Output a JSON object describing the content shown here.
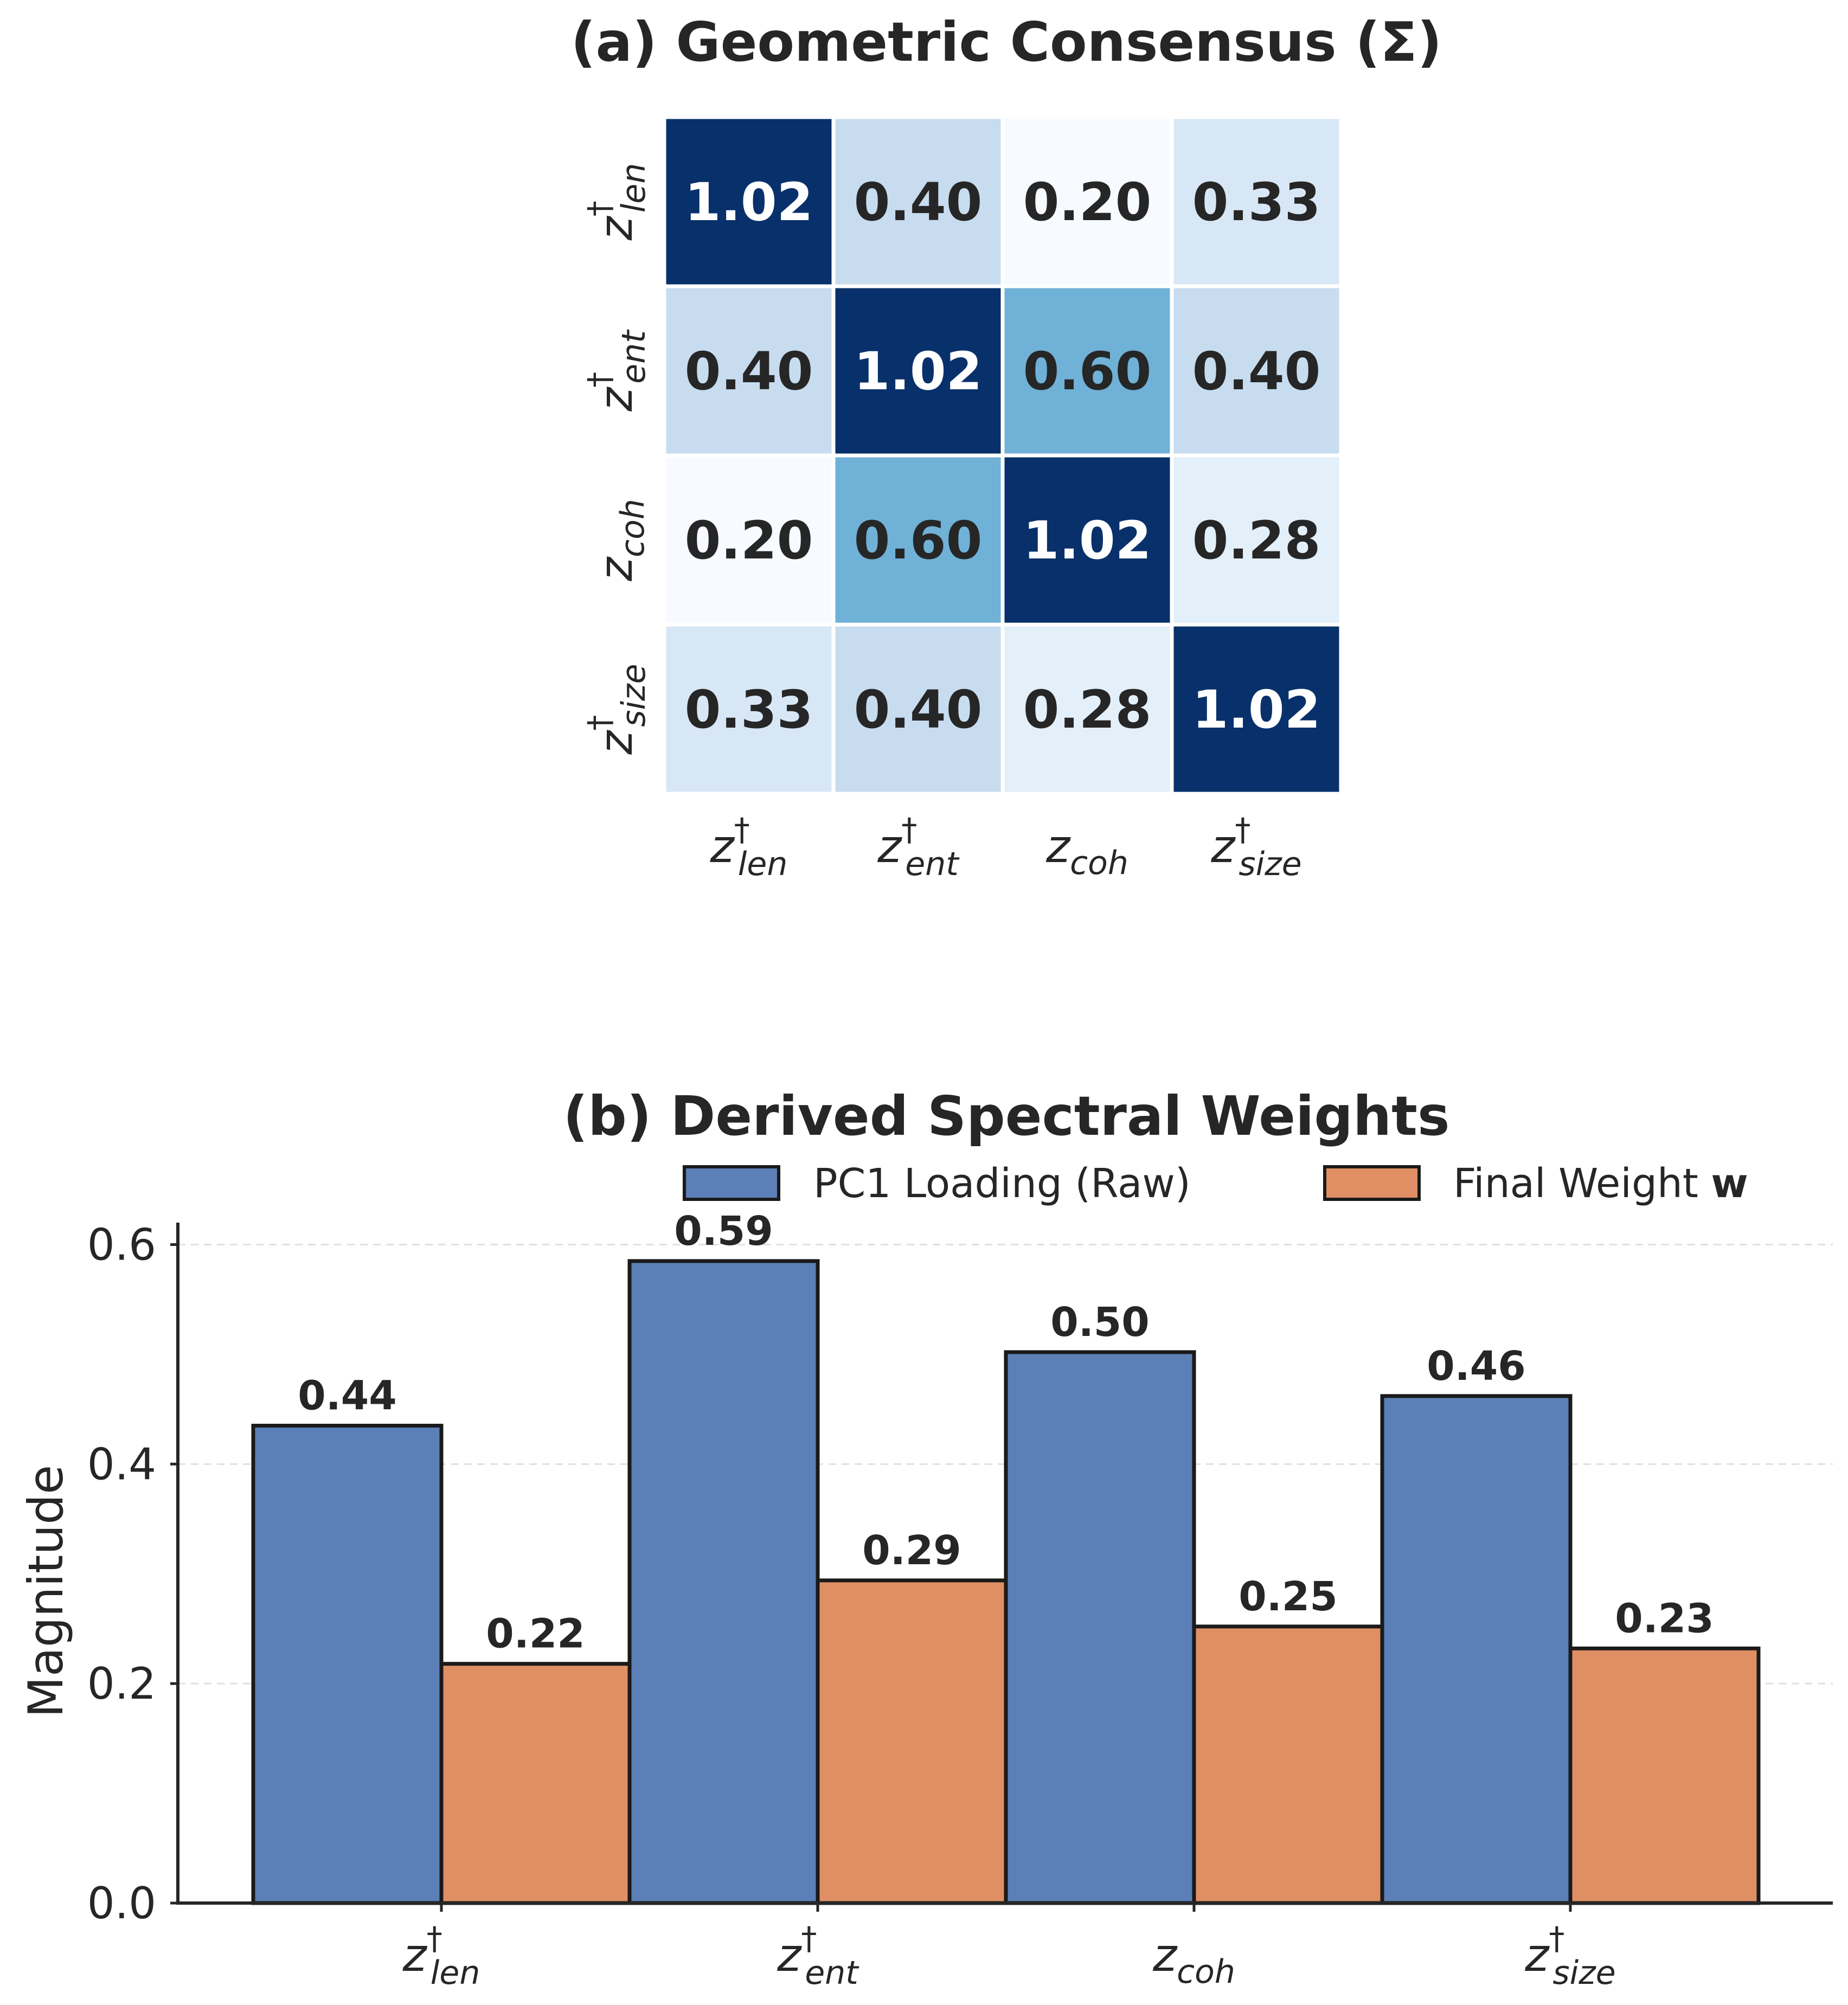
{
  "chart_data": [
    {
      "type": "heatmap",
      "title": "(a) Geometric Consensus (Σ)",
      "row_labels": [
        {
          "symbol": "z",
          "subscript": "len",
          "dagger": true
        },
        {
          "symbol": "z",
          "subscript": "ent",
          "dagger": true
        },
        {
          "symbol": "z",
          "subscript": "coh",
          "dagger": false
        },
        {
          "symbol": "z",
          "subscript": "size",
          "dagger": true
        }
      ],
      "col_labels": [
        {
          "symbol": "z",
          "subscript": "len",
          "dagger": true
        },
        {
          "symbol": "z",
          "subscript": "ent",
          "dagger": true
        },
        {
          "symbol": "z",
          "subscript": "coh",
          "dagger": false
        },
        {
          "symbol": "z",
          "subscript": "size",
          "dagger": true
        }
      ],
      "values": [
        [
          1.02,
          0.4,
          0.2,
          0.33
        ],
        [
          0.4,
          1.02,
          0.6,
          0.4
        ],
        [
          0.2,
          0.6,
          1.02,
          0.28
        ],
        [
          0.33,
          0.4,
          0.28,
          1.02
        ]
      ],
      "value_labels": [
        [
          "1.02",
          "0.40",
          "0.20",
          "0.33"
        ],
        [
          "0.40",
          "1.02",
          "0.60",
          "0.40"
        ],
        [
          "0.20",
          "0.60",
          "1.02",
          "0.28"
        ],
        [
          "0.33",
          "0.40",
          "0.28",
          "1.02"
        ]
      ],
      "colormap": "Blues",
      "vrange": [
        0.2,
        1.02
      ]
    },
    {
      "type": "bar",
      "title": "(b) Derived Spectral Weights",
      "ylabel": "Magnitude",
      "xlabel": "",
      "ylim": [
        0,
        0.62
      ],
      "yticks": [
        0.0,
        0.2,
        0.4,
        0.6
      ],
      "ytick_labels": [
        "0.0",
        "0.2",
        "0.4",
        "0.6"
      ],
      "grid": "horizontal dashed",
      "categories": [
        {
          "symbol": "z",
          "subscript": "len",
          "dagger": true
        },
        {
          "symbol": "z",
          "subscript": "ent",
          "dagger": true
        },
        {
          "symbol": "z",
          "subscript": "coh",
          "dagger": false
        },
        {
          "symbol": "z",
          "subscript": "size",
          "dagger": true
        }
      ],
      "series": [
        {
          "name": "PC1 Loading (Raw)",
          "color": "#5b7fb6",
          "values": [
            0.435,
            0.585,
            0.502,
            0.462
          ],
          "labels": [
            "0.44",
            "0.59",
            "0.50",
            "0.46"
          ]
        },
        {
          "name": "Final Weight",
          "name_bold_suffix": "w",
          "color": "#e08f64",
          "values": [
            0.218,
            0.294,
            0.252,
            0.232
          ],
          "labels": [
            "0.22",
            "0.29",
            "0.25",
            "0.23"
          ]
        }
      ],
      "legend_position": "top-right"
    }
  ]
}
